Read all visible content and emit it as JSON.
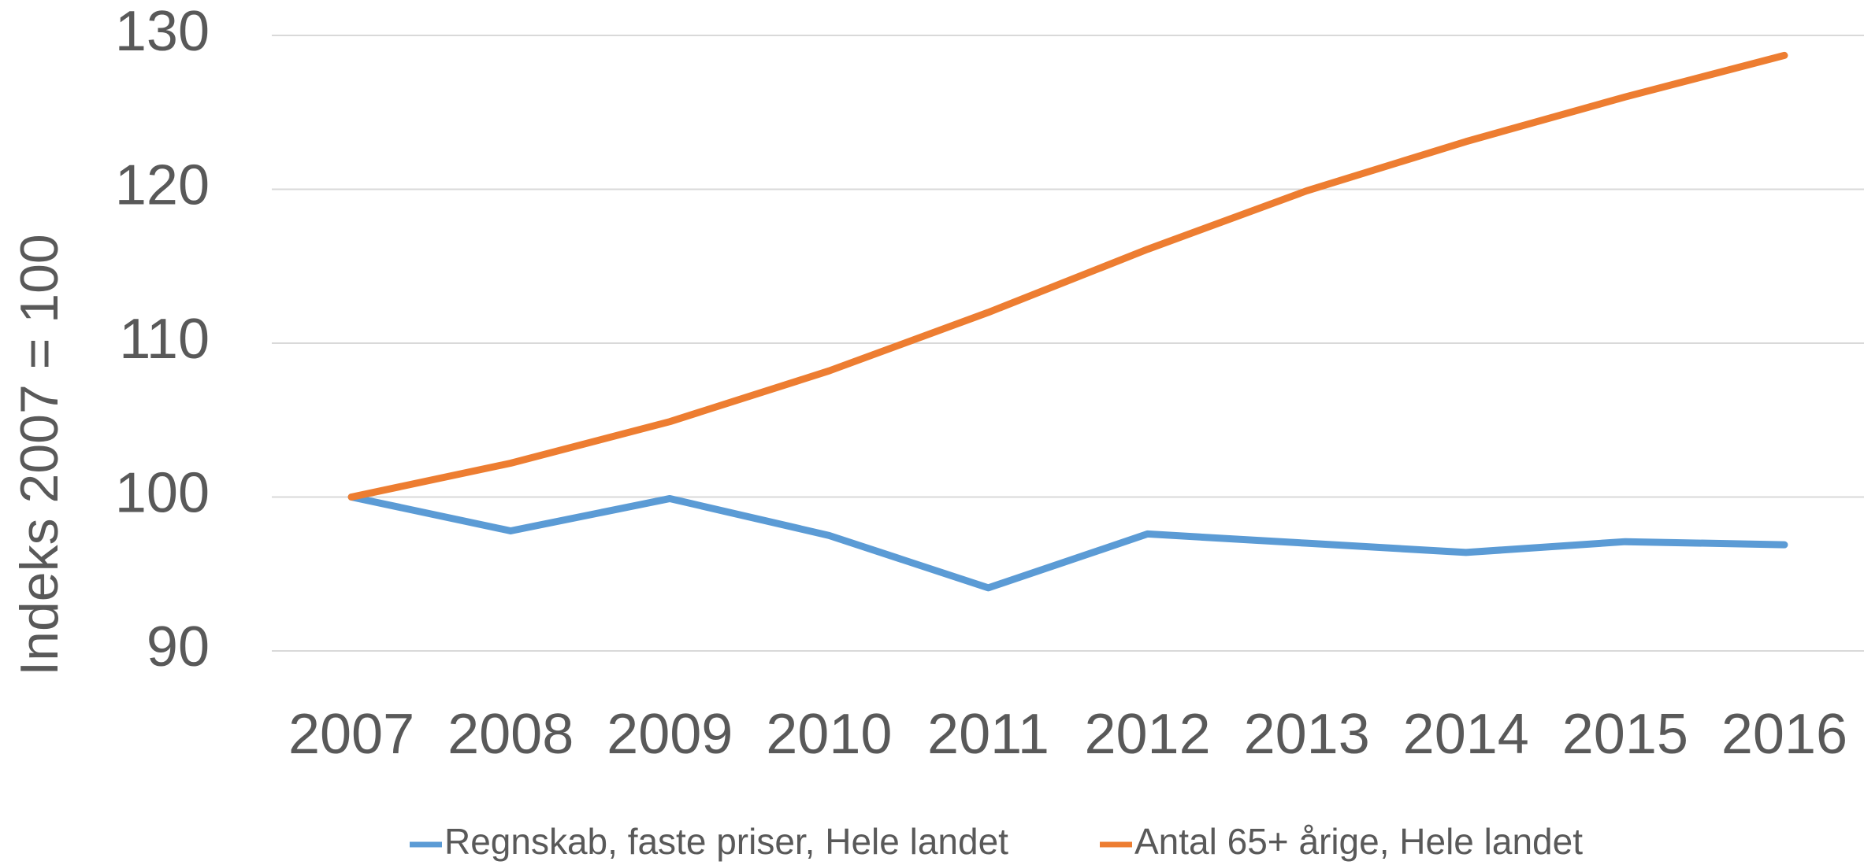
{
  "chart_data": {
    "type": "line",
    "y_label": "Indeks 2007 = 100",
    "categories": [
      "2007",
      "2008",
      "2009",
      "2010",
      "2011",
      "2012",
      "2013",
      "2014",
      "2015",
      "2016"
    ],
    "series": [
      {
        "name": "Regnskab, faste priser, Hele landet",
        "color": "#5b9bd5",
        "values": [
          100,
          97.8,
          99.9,
          97.5,
          94.1,
          97.6,
          97.0,
          96.4,
          97.1,
          96.9
        ]
      },
      {
        "name": "Antal 65+ årige, Hele landet",
        "color": "#ed7d31",
        "values": [
          100,
          102.2,
          104.9,
          108.2,
          112.0,
          116.1,
          119.9,
          123.1,
          126.0,
          128.7
        ]
      }
    ],
    "ylim": [
      90,
      130
    ],
    "yticks": [
      90,
      100,
      110,
      120,
      130
    ],
    "grid": true,
    "legend": "bottom"
  }
}
